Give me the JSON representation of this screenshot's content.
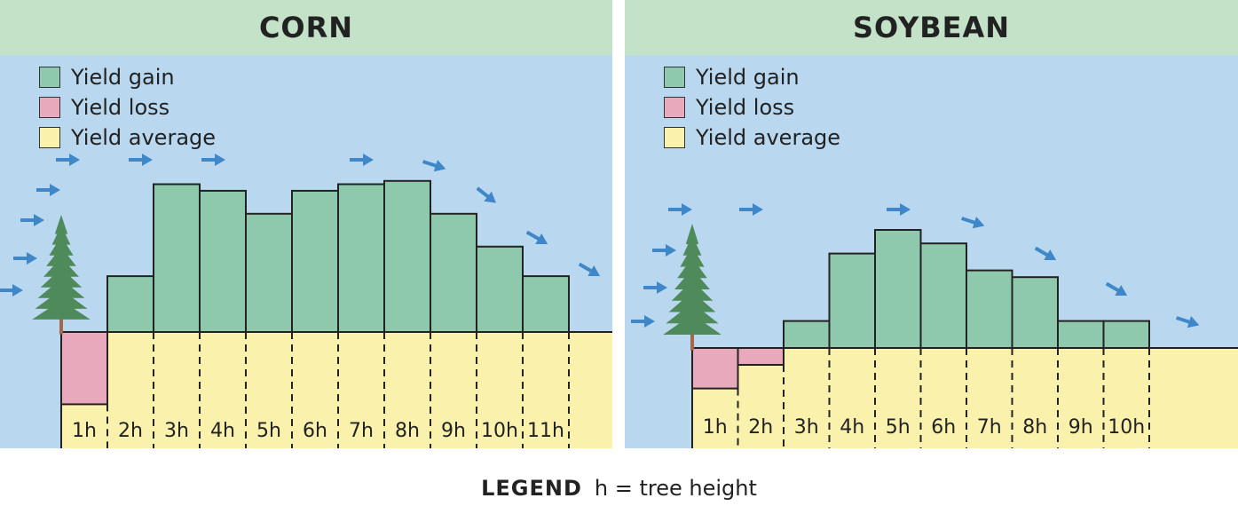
{
  "colors": {
    "sky": "#b9d8f0",
    "header": "#c4e2c8",
    "gain": "#8fc9ad",
    "loss": "#e9a9bd",
    "average": "#faf1ad",
    "arrow": "#3f87c8",
    "tree": "#4f8a5a",
    "trunk": "#a5664a"
  },
  "legend": {
    "items": [
      {
        "label": "Yield gain",
        "color": "#8fc9ad"
      },
      {
        "label": "Yield loss",
        "color": "#e9a9bd"
      },
      {
        "label": "Yield average",
        "color": "#faf1ad"
      }
    ]
  },
  "footer": {
    "key": "LEGEND",
    "text": "h = tree height"
  },
  "chart_data": [
    {
      "type": "bar",
      "title": "CORN",
      "categories": [
        "1h",
        "2h",
        "3h",
        "4h",
        "5h",
        "6h",
        "7h",
        "8h",
        "9h",
        "10h",
        "11h"
      ],
      "values": [
        -22,
        17,
        45,
        43,
        36,
        43,
        45,
        46,
        36,
        26,
        17
      ],
      "baseline": 0,
      "unit_note": "relative yield vs. average (0 = yield average)"
    },
    {
      "type": "bar",
      "title": "SOYBEAN",
      "categories": [
        "1h",
        "2h",
        "3h",
        "4h",
        "5h",
        "6h",
        "7h",
        "8h",
        "9h",
        "10h"
      ],
      "values": [
        -12,
        -5,
        8,
        28,
        35,
        31,
        23,
        21,
        8,
        8
      ],
      "baseline": 0,
      "unit_note": "relative yield vs. average (0 = yield average)"
    }
  ]
}
